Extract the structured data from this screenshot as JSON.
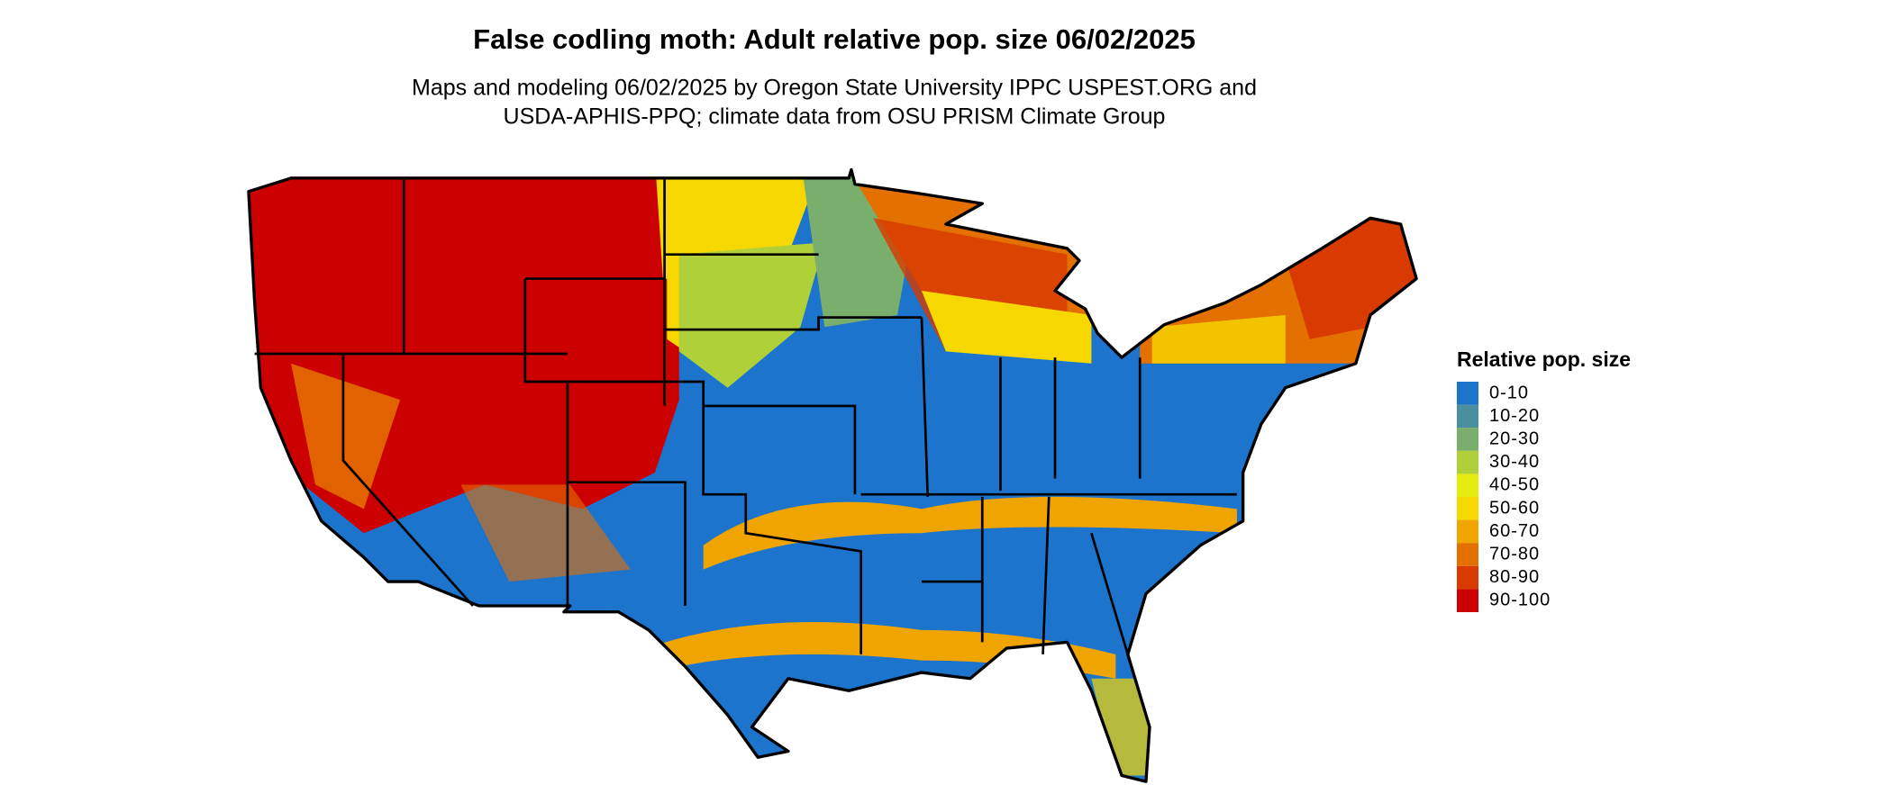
{
  "title": "False codling moth: Adult relative pop. size 06/02/2025",
  "subtitle": [
    "Maps and modeling 06/02/2025 by Oregon State University IPPC USPEST.ORG and",
    "USDA-APHIS-PPQ; climate data from OSU PRISM Climate Group"
  ],
  "legend": {
    "title": "Relative pop. size",
    "items": [
      {
        "label": "0-10",
        "color": "#1c74cc"
      },
      {
        "label": "10-20",
        "color": "#4a8fa0"
      },
      {
        "label": "20-30",
        "color": "#7aae6c"
      },
      {
        "label": "30-40",
        "color": "#b0d03a"
      },
      {
        "label": "40-50",
        "color": "#e4ec10"
      },
      {
        "label": "50-60",
        "color": "#f6d800"
      },
      {
        "label": "60-70",
        "color": "#f0a400"
      },
      {
        "label": "70-80",
        "color": "#e47000"
      },
      {
        "label": "80-90",
        "color": "#d83a00"
      },
      {
        "label": "90-100",
        "color": "#cc0000"
      }
    ]
  }
}
